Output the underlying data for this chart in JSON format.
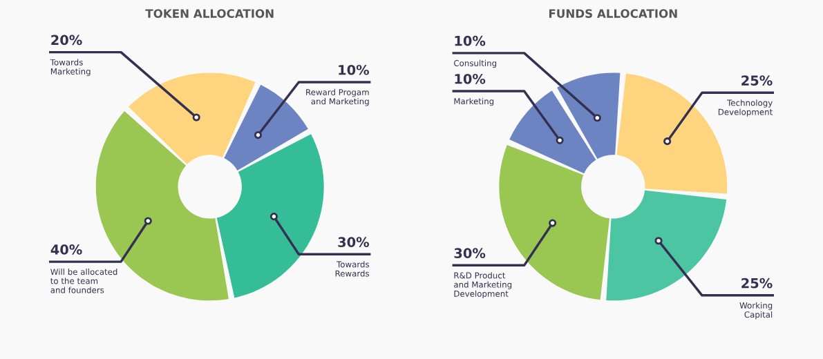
{
  "chart_data": [
    {
      "type": "donut",
      "title": "TOKEN ALLOCATION",
      "categories": [
        "Reward Progam\nand Marketing",
        "Towards\nRewards",
        "Will be allocated\nto the team\nand founders",
        "Towards\nMarketing"
      ],
      "values": [
        10,
        30,
        40,
        20
      ],
      "value_labels": [
        "10%",
        "30%",
        "40%",
        "20%"
      ],
      "colors": [
        "#6d84c3",
        "#35bd97",
        "#99c752",
        "#fed57e"
      ]
    },
    {
      "type": "donut",
      "title": "FUNDS ALLOCATION",
      "categories": [
        "Technology\nDevelopment",
        "Working\nCapital",
        "R&D Product\nand Marketing\nDevelopment",
        "Marketing",
        "Consulting"
      ],
      "values": [
        25,
        25,
        30,
        10,
        10
      ],
      "value_labels": [
        "25%",
        "25%",
        "30%",
        "10%",
        "10%"
      ],
      "colors": [
        "#fed57e",
        "#4cc5a3",
        "#99c752",
        "#6d84c3",
        "#6d84c3"
      ]
    }
  ]
}
